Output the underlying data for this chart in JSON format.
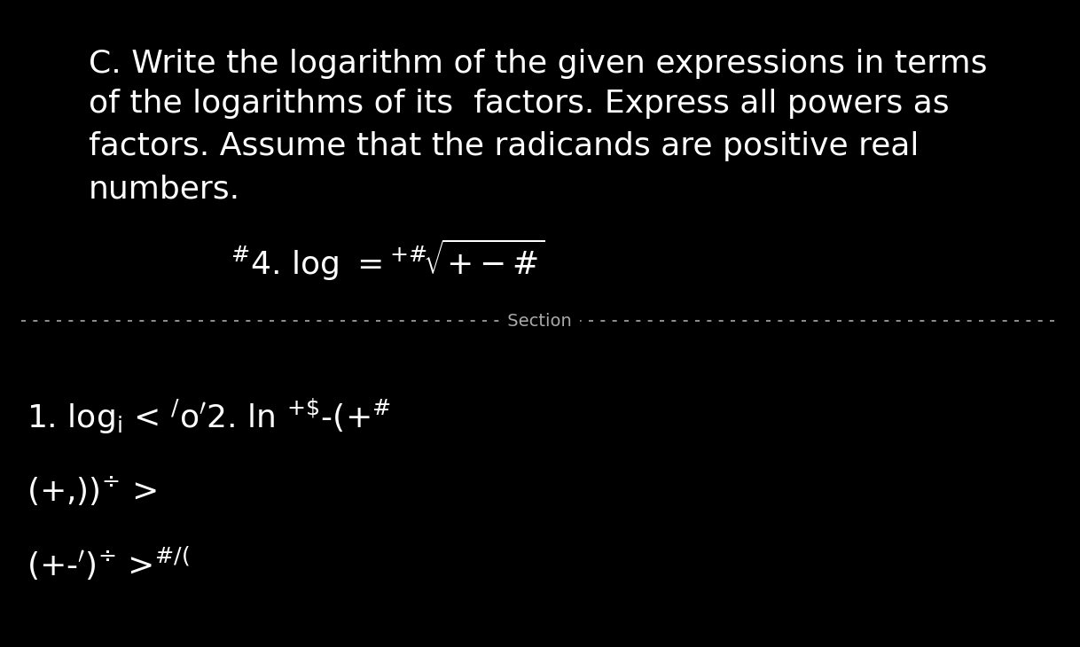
{
  "bg_color": "#000000",
  "text_color": "#ffffff",
  "text_color_grey": "#aaaaaa",
  "figsize": [
    12.18,
    7.3
  ],
  "dpi": 100,
  "line1": "C. Write the logarithm of the given expressions in terms",
  "line2": "of the logarithms of its  factors. Express all powers as",
  "line3": "factors. Assume that the radicands are positive real",
  "line4": "numbers.",
  "problem4_text": "#4. log =",
  "section_label": "Section",
  "font_para": 26,
  "font_problem": 26,
  "font_section": 14,
  "font_items": 26
}
